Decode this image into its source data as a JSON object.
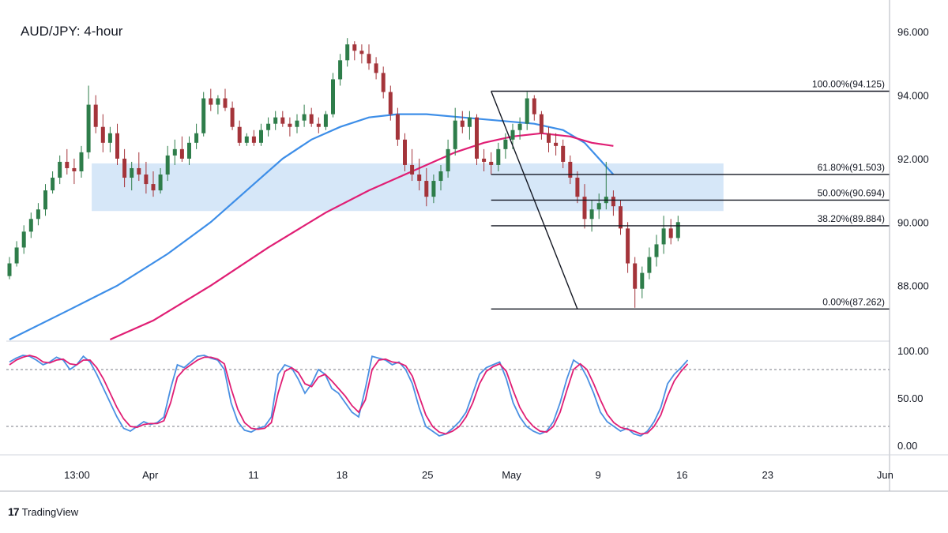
{
  "brand": {
    "name": "TradingView",
    "logo_text": "17"
  },
  "chart_data": {
    "type": "candlestick",
    "title": "AUD/JPY: 4-hour",
    "price_axis": {
      "range": [
        86.3,
        96.8
      ],
      "ticks": [
        {
          "value": 88,
          "label": "88.000"
        },
        {
          "value": 90,
          "label": "90.000"
        },
        {
          "value": 92,
          "label": "92.000"
        },
        {
          "value": 94,
          "label": "94.000"
        },
        {
          "value": 96,
          "label": "96.000"
        }
      ]
    },
    "x_axis": {
      "labels": [
        {
          "label": "13:00",
          "pos": 0.08
        },
        {
          "label": "Apr",
          "pos": 0.163
        },
        {
          "label": "11",
          "pos": 0.28
        },
        {
          "label": "18",
          "pos": 0.38
        },
        {
          "label": "25",
          "pos": 0.477
        },
        {
          "label": "May",
          "pos": 0.572
        },
        {
          "label": "9",
          "pos": 0.67
        },
        {
          "label": "16",
          "pos": 0.765
        },
        {
          "label": "23",
          "pos": 0.862
        },
        {
          "label": "Jun",
          "pos": 0.995
        }
      ]
    },
    "candles": [
      [
        88.3,
        88.9,
        88.2,
        88.7
      ],
      [
        88.7,
        89.4,
        88.6,
        89.2
      ],
      [
        89.2,
        89.9,
        89.0,
        89.7
      ],
      [
        89.7,
        90.3,
        89.5,
        90.1
      ],
      [
        90.1,
        90.6,
        89.9,
        90.4
      ],
      [
        90.4,
        91.2,
        90.2,
        91.0
      ],
      [
        91.0,
        91.6,
        90.9,
        91.4
      ],
      [
        91.4,
        92.1,
        91.2,
        91.9
      ],
      [
        91.9,
        92.3,
        91.5,
        91.7
      ],
      [
        91.7,
        92.0,
        91.2,
        91.6
      ],
      [
        91.6,
        92.4,
        91.4,
        92.2
      ],
      [
        92.2,
        94.3,
        92.0,
        93.7
      ],
      [
        93.7,
        94.0,
        92.8,
        93.0
      ],
      [
        93.0,
        93.4,
        92.2,
        92.5
      ],
      [
        92.5,
        93.0,
        92.2,
        92.8
      ],
      [
        92.8,
        93.1,
        91.8,
        92.0
      ],
      [
        92.0,
        92.3,
        91.1,
        91.4
      ],
      [
        91.4,
        91.9,
        91.0,
        91.7
      ],
      [
        91.7,
        92.2,
        91.3,
        91.5
      ],
      [
        91.5,
        91.9,
        90.9,
        91.2
      ],
      [
        91.2,
        91.6,
        90.8,
        91.0
      ],
      [
        91.0,
        91.7,
        90.9,
        91.5
      ],
      [
        91.5,
        92.4,
        91.3,
        92.1
      ],
      [
        92.1,
        92.6,
        91.8,
        92.3
      ],
      [
        92.3,
        92.7,
        91.9,
        92.0
      ],
      [
        92.0,
        92.7,
        91.8,
        92.5
      ],
      [
        92.5,
        93.1,
        92.3,
        92.8
      ],
      [
        92.8,
        94.1,
        92.7,
        93.9
      ],
      [
        93.9,
        94.2,
        93.5,
        93.7
      ],
      [
        93.7,
        94.0,
        93.4,
        93.9
      ],
      [
        93.9,
        94.2,
        93.5,
        93.6
      ],
      [
        93.6,
        93.8,
        92.9,
        93.0
      ],
      [
        93.0,
        93.2,
        92.4,
        92.5
      ],
      [
        92.5,
        92.8,
        92.4,
        92.7
      ],
      [
        92.7,
        92.9,
        92.4,
        92.5
      ],
      [
        92.5,
        93.1,
        92.4,
        92.9
      ],
      [
        92.9,
        93.3,
        92.7,
        93.1
      ],
      [
        93.1,
        93.5,
        92.9,
        93.3
      ],
      [
        93.3,
        93.5,
        93.0,
        93.1
      ],
      [
        93.1,
        93.3,
        92.7,
        93.0
      ],
      [
        93.0,
        93.4,
        92.8,
        93.2
      ],
      [
        93.2,
        93.7,
        93.0,
        93.4
      ],
      [
        93.4,
        93.6,
        93.0,
        93.1
      ],
      [
        93.1,
        93.3,
        92.8,
        93.0
      ],
      [
        93.0,
        93.5,
        92.9,
        93.4
      ],
      [
        93.4,
        94.7,
        93.3,
        94.5
      ],
      [
        94.5,
        95.3,
        94.3,
        95.1
      ],
      [
        95.1,
        95.8,
        94.9,
        95.6
      ],
      [
        95.6,
        95.7,
        95.1,
        95.4
      ],
      [
        95.4,
        95.6,
        95.0,
        95.3
      ],
      [
        95.3,
        95.6,
        94.8,
        95.0
      ],
      [
        95.0,
        95.2,
        94.5,
        94.7
      ],
      [
        94.7,
        94.9,
        93.9,
        94.1
      ],
      [
        94.1,
        94.3,
        93.2,
        93.4
      ],
      [
        93.4,
        93.6,
        92.4,
        92.6
      ],
      [
        92.6,
        92.8,
        91.6,
        91.8
      ],
      [
        91.8,
        92.3,
        91.3,
        91.5
      ],
      [
        91.5,
        92.0,
        91.0,
        91.3
      ],
      [
        91.3,
        91.7,
        90.5,
        90.8
      ],
      [
        90.8,
        91.5,
        90.6,
        91.3
      ],
      [
        91.3,
        91.8,
        91.0,
        91.6
      ],
      [
        91.6,
        92.6,
        91.4,
        92.3
      ],
      [
        92.3,
        93.6,
        92.1,
        93.2
      ],
      [
        93.2,
        93.5,
        92.8,
        93.0
      ],
      [
        93.0,
        93.5,
        92.6,
        93.3
      ],
      [
        93.3,
        93.4,
        91.8,
        92.0
      ],
      [
        92.0,
        92.3,
        91.6,
        91.9
      ],
      [
        91.9,
        92.2,
        91.5,
        91.8
      ],
      [
        91.8,
        92.5,
        91.6,
        92.3
      ],
      [
        92.3,
        92.8,
        92.0,
        92.6
      ],
      [
        92.6,
        93.1,
        92.3,
        92.9
      ],
      [
        92.9,
        93.3,
        92.6,
        93.1
      ],
      [
        93.1,
        94.1,
        92.9,
        93.9
      ],
      [
        93.9,
        94.0,
        93.2,
        93.4
      ],
      [
        93.4,
        93.5,
        92.6,
        92.8
      ],
      [
        92.8,
        93.0,
        92.2,
        92.5
      ],
      [
        92.5,
        92.8,
        92.1,
        92.4
      ],
      [
        92.4,
        92.6,
        91.7,
        91.9
      ],
      [
        91.9,
        92.1,
        91.2,
        91.4
      ],
      [
        91.4,
        91.6,
        90.6,
        90.8
      ],
      [
        90.8,
        91.2,
        89.8,
        90.1
      ],
      [
        90.1,
        90.7,
        89.7,
        90.4
      ],
      [
        90.4,
        90.9,
        90.1,
        90.6
      ],
      [
        90.6,
        91.9,
        90.4,
        90.8
      ],
      [
        90.8,
        91.0,
        90.2,
        90.5
      ],
      [
        90.5,
        90.7,
        89.6,
        89.8
      ],
      [
        89.8,
        90.0,
        88.4,
        88.7
      ],
      [
        88.7,
        88.9,
        87.3,
        87.9
      ],
      [
        87.9,
        88.6,
        87.6,
        88.4
      ],
      [
        88.4,
        89.2,
        88.2,
        88.9
      ],
      [
        88.9,
        89.6,
        88.6,
        89.3
      ],
      [
        89.3,
        90.2,
        89.0,
        89.8
      ],
      [
        89.8,
        90.1,
        89.3,
        89.5
      ],
      [
        89.5,
        90.2,
        89.4,
        90.0
      ]
    ],
    "ma_blue": [
      [
        0,
        86.3
      ],
      [
        8,
        87.2
      ],
      [
        15,
        88.0
      ],
      [
        22,
        89.0
      ],
      [
        28,
        90.0
      ],
      [
        33,
        91.0
      ],
      [
        38,
        92.0
      ],
      [
        42,
        92.6
      ],
      [
        46,
        93.0
      ],
      [
        50,
        93.3
      ],
      [
        54,
        93.4
      ],
      [
        58,
        93.4
      ],
      [
        63,
        93.3
      ],
      [
        68,
        93.2
      ],
      [
        73,
        93.1
      ],
      [
        77,
        92.9
      ],
      [
        80,
        92.5
      ],
      [
        82,
        92.0
      ],
      [
        84,
        91.5
      ]
    ],
    "ma_pink": [
      [
        14,
        86.3
      ],
      [
        20,
        86.9
      ],
      [
        28,
        88.0
      ],
      [
        36,
        89.2
      ],
      [
        44,
        90.3
      ],
      [
        50,
        91.0
      ],
      [
        56,
        91.6
      ],
      [
        62,
        92.2
      ],
      [
        66,
        92.5
      ],
      [
        70,
        92.7
      ],
      [
        74,
        92.8
      ],
      [
        78,
        92.7
      ],
      [
        81,
        92.5
      ],
      [
        84,
        92.4
      ]
    ],
    "support_zone": {
      "top": 91.85,
      "bottom": 90.35,
      "from": 11,
      "to": 98
    },
    "fib_levels": [
      {
        "label": "100.00%(94.125)",
        "value": 94.125
      },
      {
        "label": "61.80%(91.503)",
        "value": 91.503
      },
      {
        "label": "50.00%(90.694)",
        "value": 90.694
      },
      {
        "label": "38.20%(89.884)",
        "value": 89.884
      },
      {
        "label": "0.00%(87.262)",
        "value": 87.262
      }
    ],
    "fib_swing": {
      "from_index": 67,
      "to_index": 79
    },
    "stochastic": {
      "range": [
        -10,
        110
      ],
      "ticks": [
        {
          "value": 100,
          "label": "100.00"
        },
        {
          "value": 50,
          "label": "50.00"
        },
        {
          "value": 0,
          "label": "0.00"
        }
      ],
      "upper": 80,
      "lower": 20,
      "k": [
        88,
        92,
        95,
        94,
        90,
        85,
        88,
        93,
        90,
        80,
        85,
        94,
        88,
        75,
        60,
        45,
        30,
        18,
        15,
        20,
        25,
        22,
        24,
        30,
        60,
        85,
        82,
        88,
        94,
        95,
        92,
        90,
        80,
        45,
        25,
        16,
        14,
        18,
        20,
        30,
        75,
        85,
        82,
        70,
        55,
        65,
        80,
        75,
        60,
        55,
        45,
        35,
        30,
        60,
        94,
        92,
        90,
        85,
        88,
        80,
        65,
        40,
        20,
        15,
        10,
        12,
        18,
        25,
        35,
        55,
        75,
        82,
        85,
        88,
        70,
        45,
        30,
        20,
        15,
        12,
        15,
        25,
        45,
        70,
        90,
        85,
        72,
        55,
        35,
        25,
        20,
        15,
        18,
        12,
        10,
        15,
        25,
        40,
        65,
        75,
        82,
        90
      ],
      "d": [
        85,
        90,
        93,
        95,
        93,
        88,
        87,
        90,
        91,
        86,
        85,
        90,
        90,
        82,
        70,
        55,
        40,
        28,
        20,
        19,
        22,
        23,
        23,
        26,
        45,
        72,
        80,
        85,
        90,
        93,
        93,
        91,
        86,
        60,
        38,
        24,
        18,
        17,
        18,
        24,
        55,
        78,
        82,
        77,
        65,
        62,
        72,
        75,
        68,
        60,
        52,
        42,
        35,
        48,
        80,
        90,
        91,
        88,
        87,
        84,
        73,
        52,
        32,
        20,
        14,
        12,
        15,
        20,
        30,
        45,
        65,
        78,
        83,
        86,
        78,
        58,
        40,
        28,
        20,
        15,
        14,
        20,
        35,
        58,
        80,
        86,
        80,
        65,
        48,
        33,
        24,
        19,
        17,
        15,
        12,
        13,
        20,
        32,
        52,
        68,
        78,
        86
      ],
      "k_color": "#4a90e2",
      "d_color": "#e01e74"
    },
    "colors": {
      "up": "#2e7d4a",
      "down": "#a4343a",
      "ma_blue": "#3d8ee8",
      "ma_pink": "#e01e74",
      "zone": "#cfe3f7"
    }
  }
}
